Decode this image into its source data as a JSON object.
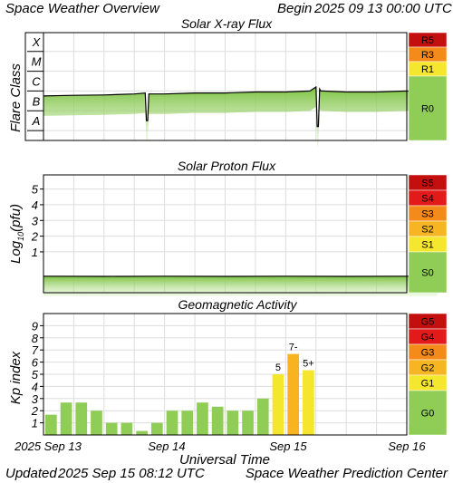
{
  "header": {
    "title": "Space Weather Overview",
    "begin_label": "Begin",
    "begin_time": "2025 09 13 00:00 UTC"
  },
  "footer": {
    "updated_label": "Updated",
    "updated_time": "2025 Sep 15 08:12 UTC",
    "source": "Space Weather Prediction Center"
  },
  "colors": {
    "bar_green": "#8fcd57",
    "bar_yellow": "#f4e52d",
    "bar_orange": "#f8b320",
    "scale_green": "#8fcd57",
    "scale_yellow": "#f5e62e",
    "scale_amber": "#f6b623",
    "scale_orange": "#f48a1a",
    "scale_red": "#e21a1a",
    "scale_darkred": "#c40f0f",
    "flux_line": "#000000",
    "flux_fill": "#8fcd57",
    "grid": "#dddddd"
  },
  "chart_data": [
    {
      "type": "line",
      "title": "Solar X-ray Flux",
      "ylabel": "Flare Class",
      "y_categories": [
        "A",
        "B",
        "C",
        "M",
        "X"
      ],
      "ylim": [
        -8.5,
        -3.05
      ],
      "xlim": [
        0,
        4
      ],
      "x": [
        0,
        0.25,
        0.5,
        0.75,
        0.84,
        0.85,
        0.86,
        0.87,
        1.0,
        1.25,
        1.5,
        1.75,
        2.0,
        2.2,
        2.25,
        2.26,
        2.27,
        2.28,
        2.29,
        2.3,
        2.5,
        2.75,
        3.0,
        3.25
      ],
      "values": [
        -6.25,
        -6.22,
        -6.2,
        -6.15,
        -6.1,
        -7.5,
        -7.5,
        -6.15,
        -6.15,
        -6.1,
        -6.1,
        -6.05,
        -6.05,
        -6.0,
        -5.8,
        -7.8,
        -7.8,
        -5.9,
        -6.0,
        -6.0,
        -6.05,
        -6.05,
        -6.0,
        -6.05
      ],
      "scale": [
        {
          "label": "R5",
          "color": "#c40f0f"
        },
        {
          "label": "R3",
          "color": "#f48a1a"
        },
        {
          "label": "R1",
          "color": "#f5e62e"
        },
        {
          "label": "R0",
          "color": "#8fcd57"
        }
      ]
    },
    {
      "type": "line",
      "title": "Solar Proton Flux",
      "ylabel": "Log10(pfu)",
      "ylabel_parts": [
        "Log",
        "10",
        "(pfu)"
      ],
      "yticks": [
        1,
        2,
        3,
        4,
        5
      ],
      "ylim": [
        -1.6,
        5.9
      ],
      "xlim": [
        0,
        4
      ],
      "x": [
        0,
        0.5,
        1.0,
        1.5,
        2.0,
        2.5,
        3.0,
        3.25
      ],
      "values": [
        -0.55,
        -0.56,
        -0.55,
        -0.56,
        -0.55,
        -0.56,
        -0.55,
        -0.56
      ],
      "scale": [
        {
          "label": "S5",
          "color": "#c40f0f"
        },
        {
          "label": "S4",
          "color": "#e21a1a"
        },
        {
          "label": "S3",
          "color": "#f48a1a"
        },
        {
          "label": "S2",
          "color": "#f6b623"
        },
        {
          "label": "S1",
          "color": "#f5e62e"
        },
        {
          "label": "S0",
          "color": "#8fcd57"
        }
      ]
    },
    {
      "type": "bar",
      "title": "Geomagnetic Activity",
      "ylabel": "Kp index",
      "yticks": [
        1,
        2,
        3,
        4,
        5,
        6,
        7,
        8,
        9
      ],
      "ylim": [
        0,
        10
      ],
      "xlabel": "Universal Time",
      "xticks": [
        "2025 Sep 13",
        "Sep 14",
        "Sep 15",
        "Sep 16"
      ],
      "values": [
        1.67,
        2.67,
        2.67,
        2.0,
        1.0,
        1.0,
        0.33,
        1.0,
        2.0,
        2.0,
        2.67,
        2.33,
        2.0,
        2.0,
        3.0,
        5.0,
        6.67,
        5.33
      ],
      "bar_labels": [
        "",
        "",
        "",
        "",
        "",
        "",
        "",
        "",
        "",
        "",
        "",
        "",
        "",
        "",
        "",
        "5",
        "7-",
        "5+"
      ],
      "scale": [
        {
          "label": "G5",
          "color": "#c40f0f"
        },
        {
          "label": "G4",
          "color": "#e21a1a"
        },
        {
          "label": "G3",
          "color": "#f48a1a"
        },
        {
          "label": "G2",
          "color": "#f6b623"
        },
        {
          "label": "G1",
          "color": "#f5e62e"
        },
        {
          "label": "G0",
          "color": "#8fcd57"
        }
      ]
    }
  ]
}
